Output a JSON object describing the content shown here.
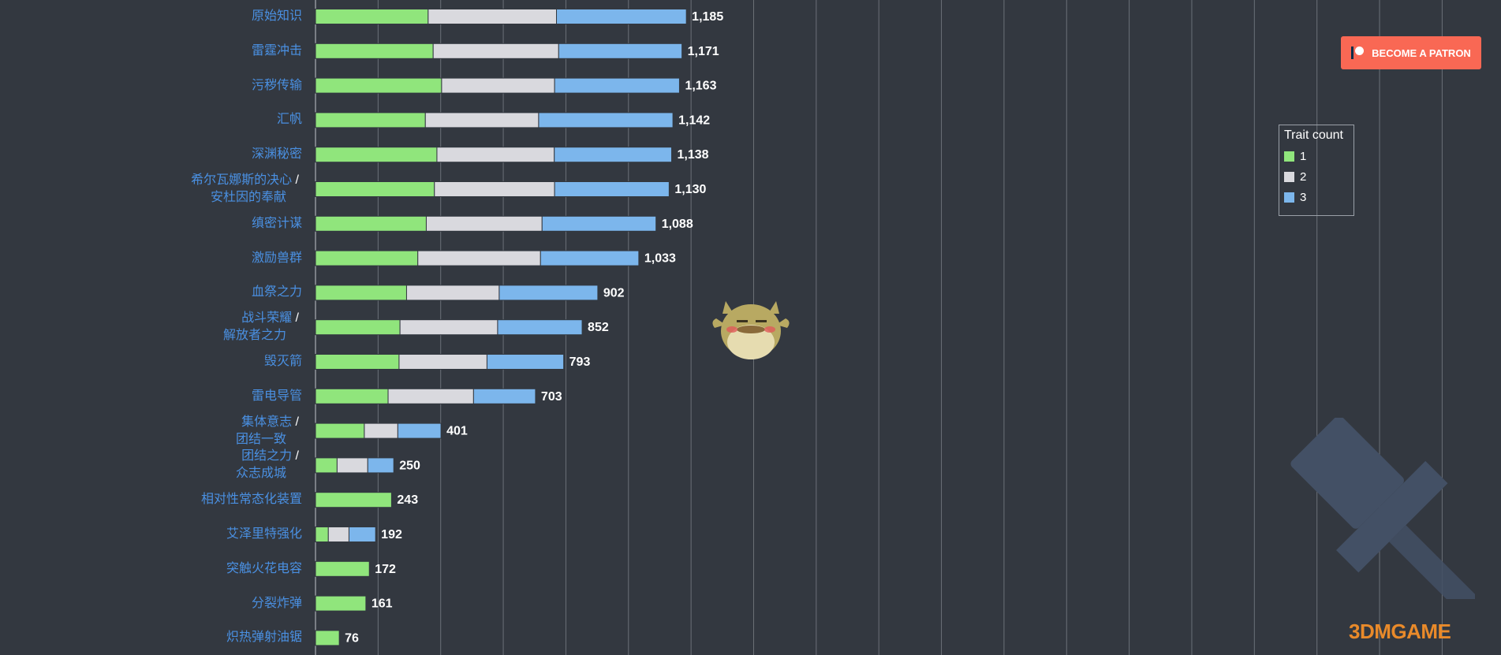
{
  "chart_data": {
    "type": "bar",
    "orientation": "horizontal",
    "stacked": true,
    "categories": [
      "原始知识",
      "雷霆冲击",
      "污秽传输",
      "汇帆",
      "深渊秘密",
      [
        "希尔瓦娜斯的决心",
        "安杜因的奉献"
      ],
      "缜密计谋",
      "激励兽群",
      "血祭之力",
      [
        "战斗荣耀",
        "解放者之力"
      ],
      "毁灭箭",
      "雷电导管",
      [
        "集体意志",
        "团结一致"
      ],
      [
        "团结之力",
        "众志成城"
      ],
      "相对性常态化装置",
      "艾泽里特强化",
      "突触火花电容",
      "分裂炸弹",
      "炽热弹射油锯"
    ],
    "series": [
      {
        "name": "1",
        "color": "#90e57c",
        "values": [
          360,
          376,
          403,
          351,
          388,
          380,
          354,
          327,
          291,
          270,
          267,
          232,
          156,
          69,
          243,
          41,
          172,
          161,
          76
        ]
      },
      {
        "name": "2",
        "color": "#d9d9de",
        "values": [
          410,
          401,
          361,
          362,
          375,
          384,
          370,
          392,
          296,
          312,
          281,
          273,
          107,
          98,
          0,
          66,
          0,
          0,
          0
        ]
      },
      {
        "name": "3",
        "color": "#7cb6ec",
        "values": [
          415,
          394,
          399,
          429,
          375,
          366,
          364,
          314,
          315,
          270,
          245,
          198,
          138,
          83,
          0,
          85,
          0,
          0,
          0
        ]
      }
    ],
    "totals": [
      "1,185",
      "1,171",
      "1,163",
      "1,142",
      "1,138",
      "1,130",
      "1,088",
      "1,033",
      "902",
      "852",
      "793",
      "703",
      "401",
      "250",
      "243",
      "192",
      "172",
      "161",
      "76"
    ],
    "legend": {
      "title": "Trait count",
      "position": "right",
      "items": [
        "1",
        "2",
        "3"
      ]
    },
    "xlim": [
      0,
      4000
    ],
    "grid": true
  },
  "patron_button": {
    "label": "BECOME A PATRON"
  },
  "watermark": "3DMGAME"
}
